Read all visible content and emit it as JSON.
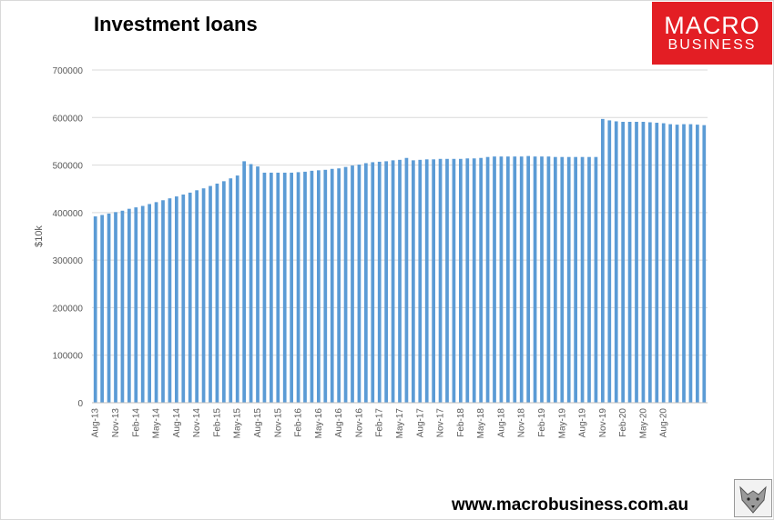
{
  "chart_data": {
    "type": "bar",
    "title": "Investment loans",
    "ylabel": "$10k",
    "xlabel": "",
    "ylim": [
      0,
      700000
    ],
    "yticks": [
      0,
      100000,
      200000,
      300000,
      400000,
      500000,
      600000,
      700000
    ],
    "grid": true,
    "legend": "none",
    "bar_color": "#5b9bd5",
    "start_month": "Aug-13",
    "x_tick_labels": [
      "Aug-13",
      "Nov-13",
      "Feb-14",
      "May-14",
      "Aug-14",
      "Nov-14",
      "Feb-15",
      "May-15",
      "Aug-15",
      "Nov-15",
      "Feb-16",
      "May-16",
      "Aug-16",
      "Nov-16",
      "Feb-17",
      "May-17",
      "Aug-17",
      "Nov-17",
      "Feb-18",
      "May-18",
      "Aug-18",
      "Nov-18",
      "Feb-19",
      "May-19",
      "Aug-19",
      "Nov-19",
      "Feb-20",
      "May-20",
      "Aug-20"
    ],
    "values": [
      392000,
      395000,
      398000,
      401000,
      404000,
      408000,
      411000,
      414000,
      418000,
      422000,
      426000,
      430000,
      434000,
      438000,
      442000,
      447000,
      451000,
      456000,
      461000,
      466000,
      472000,
      478000,
      508000,
      502000,
      497000,
      484000,
      484000,
      484000,
      484000,
      484000,
      485000,
      486000,
      488000,
      489000,
      490000,
      492000,
      493000,
      496000,
      499000,
      501000,
      504000,
      506000,
      507000,
      508000,
      510000,
      511000,
      515000,
      510000,
      511000,
      512000,
      512000,
      513000,
      513000,
      513000,
      513000,
      514000,
      514000,
      515000,
      517000,
      518000,
      518000,
      518000,
      518000,
      518000,
      519000,
      518000,
      518000,
      518000,
      517000,
      517000,
      517000,
      517000,
      517000,
      517000,
      517000,
      597000,
      594000,
      592000,
      591000,
      591000,
      591000,
      591000,
      590000,
      589000,
      588000,
      586000,
      585000,
      586000,
      586000,
      585000,
      584000
    ]
  },
  "header": {
    "title": "Investment loans"
  },
  "logo": {
    "line1": "MACRO",
    "line2": "BUSINESS"
  },
  "footer": {
    "url": "www.macrobusiness.com.au"
  }
}
